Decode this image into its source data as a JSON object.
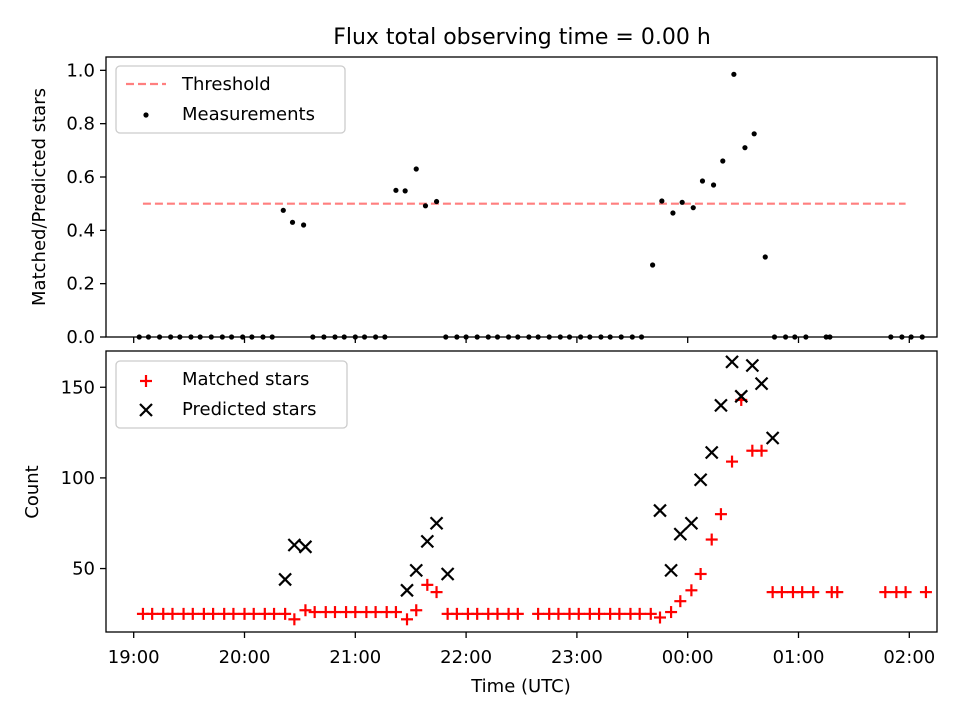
{
  "title": "Flux total observing time = 0.00 h",
  "chart_data": [
    {
      "type": "scatter",
      "panel": "top",
      "title": "",
      "xlabel": "",
      "ylabel": "Matched/Predicted stars",
      "xlim": [
        "18:45",
        "02:15"
      ],
      "ylim": [
        0,
        1.05
      ],
      "yticks": [
        "0.0",
        "0.2",
        "0.4",
        "0.6",
        "0.8",
        "1.0"
      ],
      "legend_position": "upper-left",
      "threshold": {
        "name": "Threshold",
        "color": "#ff7f7f",
        "style": "dashed",
        "y": 0.5,
        "x_range": [
          "19:05",
          "01:58"
        ]
      },
      "series": [
        {
          "name": "Measurements",
          "color": "#000000",
          "marker": "dot",
          "points": [
            [
              "19:03",
              0
            ],
            [
              "19:08",
              0
            ],
            [
              "19:14",
              0
            ],
            [
              "19:20",
              0
            ],
            [
              "19:25",
              0
            ],
            [
              "19:31",
              0
            ],
            [
              "19:36",
              0
            ],
            [
              "19:42",
              0
            ],
            [
              "19:48",
              0
            ],
            [
              "19:53",
              0
            ],
            [
              "19:59",
              0
            ],
            [
              "20:04",
              0
            ],
            [
              "20:10",
              0
            ],
            [
              "20:15",
              0
            ],
            [
              "20:21",
              0.475
            ],
            [
              "20:26",
              0.43
            ],
            [
              "20:32",
              0.42
            ],
            [
              "20:37",
              0
            ],
            [
              "20:43",
              0
            ],
            [
              "20:49",
              0
            ],
            [
              "20:54",
              0
            ],
            [
              "21:00",
              0
            ],
            [
              "21:05",
              0
            ],
            [
              "21:11",
              0
            ],
            [
              "21:16",
              0
            ],
            [
              "21:22",
              0.55
            ],
            [
              "21:27",
              0.548
            ],
            [
              "21:33",
              0.63
            ],
            [
              "21:38",
              0.492
            ],
            [
              "21:44",
              0.508
            ],
            [
              "21:49",
              0
            ],
            [
              "21:55",
              0
            ],
            [
              "22:00",
              0
            ],
            [
              "22:06",
              0
            ],
            [
              "22:12",
              0
            ],
            [
              "22:17",
              0
            ],
            [
              "22:23",
              0
            ],
            [
              "22:28",
              0
            ],
            [
              "22:34",
              0
            ],
            [
              "22:39",
              0
            ],
            [
              "22:45",
              0
            ],
            [
              "22:51",
              0
            ],
            [
              "22:56",
              0
            ],
            [
              "23:02",
              0
            ],
            [
              "23:07",
              0
            ],
            [
              "23:13",
              0
            ],
            [
              "23:18",
              0
            ],
            [
              "23:24",
              0
            ],
            [
              "23:30",
              0
            ],
            [
              "23:35",
              0
            ],
            [
              "23:41",
              0.27
            ],
            [
              "23:46",
              0.51
            ],
            [
              "23:52",
              0.465
            ],
            [
              "23:57",
              0.505
            ],
            [
              "00:03",
              0.485
            ],
            [
              "00:08",
              0.585
            ],
            [
              "00:14",
              0.57
            ],
            [
              "00:19",
              0.66
            ],
            [
              "00:25",
              0.985
            ],
            [
              "00:31",
              0.71
            ],
            [
              "00:36",
              0.762
            ],
            [
              "00:42",
              0.3
            ],
            [
              "00:47",
              0
            ],
            [
              "00:53",
              0
            ],
            [
              "00:58",
              0
            ],
            [
              "01:04",
              0
            ],
            [
              "01:15",
              0
            ],
            [
              "01:17",
              0
            ],
            [
              "01:50",
              0
            ],
            [
              "01:56",
              0
            ],
            [
              "02:01",
              0
            ],
            [
              "02:07",
              0
            ]
          ]
        }
      ]
    },
    {
      "type": "scatter",
      "panel": "bottom",
      "title": "",
      "xlabel": "Time (UTC)",
      "ylabel": "Count",
      "xlim": [
        "18:45",
        "02:15"
      ],
      "ylim": [
        15,
        170
      ],
      "yticks": [
        "50",
        "100",
        "150"
      ],
      "xticks": [
        "19:00",
        "20:00",
        "21:00",
        "22:00",
        "23:00",
        "00:00",
        "01:00",
        "02:00"
      ],
      "legend_position": "upper-left",
      "series": [
        {
          "name": "Matched stars",
          "color": "#ff0000",
          "marker": "plus",
          "points": [
            [
              "19:05",
              25
            ],
            [
              "19:10",
              25
            ],
            [
              "19:16",
              25
            ],
            [
              "19:21",
              25
            ],
            [
              "19:27",
              25
            ],
            [
              "19:32",
              25
            ],
            [
              "19:38",
              25
            ],
            [
              "19:43",
              25
            ],
            [
              "19:49",
              25
            ],
            [
              "19:54",
              25
            ],
            [
              "20:00",
              25
            ],
            [
              "20:05",
              25
            ],
            [
              "20:11",
              25
            ],
            [
              "20:16",
              25
            ],
            [
              "20:22",
              25
            ],
            [
              "20:27",
              22
            ],
            [
              "20:33",
              27
            ],
            [
              "20:38",
              26
            ],
            [
              "20:44",
              26
            ],
            [
              "20:49",
              26
            ],
            [
              "20:55",
              26
            ],
            [
              "21:00",
              26
            ],
            [
              "21:06",
              26
            ],
            [
              "21:11",
              26
            ],
            [
              "21:17",
              26
            ],
            [
              "21:22",
              26
            ],
            [
              "21:28",
              22
            ],
            [
              "21:33",
              27
            ],
            [
              "21:39",
              41
            ],
            [
              "21:44",
              37
            ],
            [
              "21:50",
              25
            ],
            [
              "21:55",
              25
            ],
            [
              "22:01",
              25
            ],
            [
              "22:06",
              25
            ],
            [
              "22:12",
              25
            ],
            [
              "22:17",
              25
            ],
            [
              "22:23",
              25
            ],
            [
              "22:28",
              25
            ],
            [
              "22:39",
              25
            ],
            [
              "22:45",
              25
            ],
            [
              "22:50",
              25
            ],
            [
              "22:56",
              25
            ],
            [
              "23:01",
              25
            ],
            [
              "23:07",
              25
            ],
            [
              "23:12",
              25
            ],
            [
              "23:18",
              25
            ],
            [
              "23:23",
              25
            ],
            [
              "23:29",
              25
            ],
            [
              "23:34",
              25
            ],
            [
              "23:40",
              25
            ],
            [
              "23:45",
              23
            ],
            [
              "23:51",
              26
            ],
            [
              "23:56",
              32
            ],
            [
              "00:02",
              38
            ],
            [
              "00:07",
              47
            ],
            [
              "00:13",
              66
            ],
            [
              "00:18",
              80
            ],
            [
              "00:24",
              109
            ],
            [
              "00:29",
              143
            ],
            [
              "00:35",
              115
            ],
            [
              "00:40",
              115
            ],
            [
              "00:46",
              37
            ],
            [
              "00:51",
              37
            ],
            [
              "00:57",
              37
            ],
            [
              "01:02",
              37
            ],
            [
              "01:08",
              37
            ],
            [
              "01:18",
              37
            ],
            [
              "01:21",
              37
            ],
            [
              "01:47",
              37
            ],
            [
              "01:53",
              37
            ],
            [
              "01:58",
              37
            ],
            [
              "02:09",
              37
            ]
          ]
        },
        {
          "name": "Predicted stars",
          "color": "#000000",
          "marker": "x",
          "points": [
            [
              "20:22",
              44
            ],
            [
              "20:27",
              63
            ],
            [
              "20:33",
              62
            ],
            [
              "21:28",
              38
            ],
            [
              "21:33",
              49
            ],
            [
              "21:39",
              65
            ],
            [
              "21:44",
              75
            ],
            [
              "21:50",
              47
            ],
            [
              "23:45",
              82
            ],
            [
              "23:51",
              49
            ],
            [
              "23:56",
              69
            ],
            [
              "00:02",
              75
            ],
            [
              "00:07",
              99
            ],
            [
              "00:13",
              114
            ],
            [
              "00:18",
              140
            ],
            [
              "00:24",
              164
            ],
            [
              "00:29",
              145
            ],
            [
              "00:35",
              162
            ],
            [
              "00:40",
              152
            ],
            [
              "00:46",
              122
            ]
          ]
        }
      ]
    }
  ]
}
